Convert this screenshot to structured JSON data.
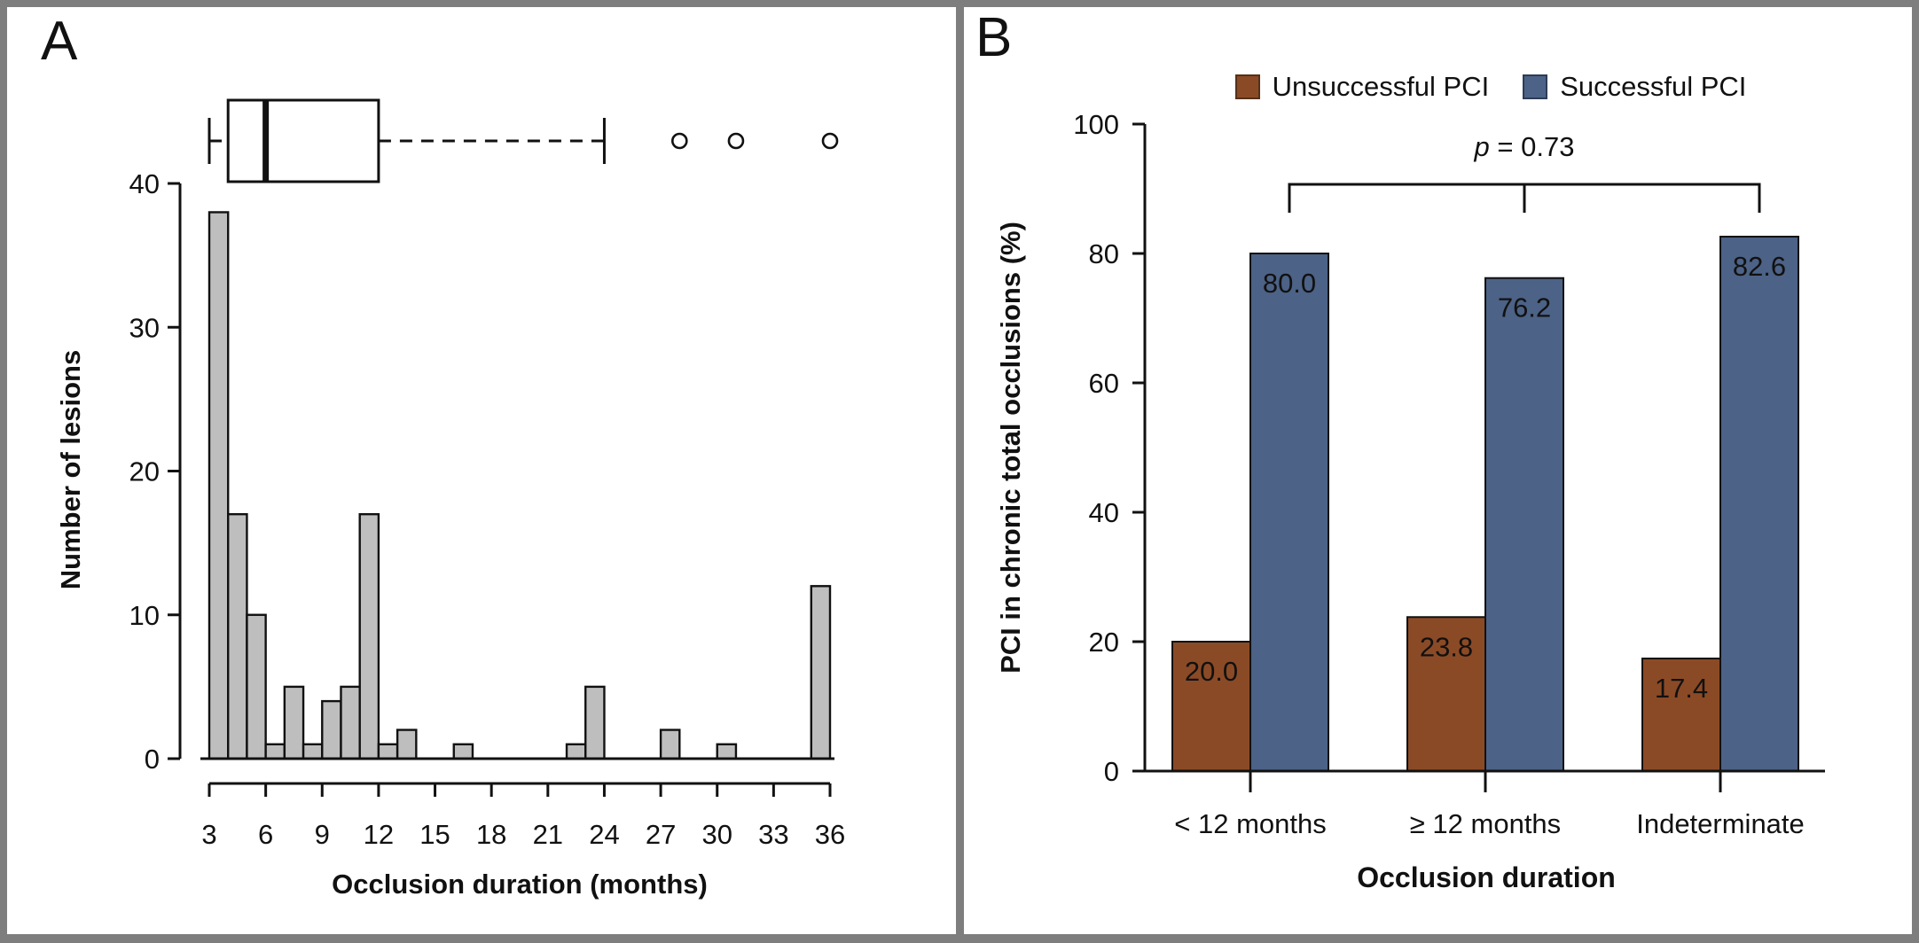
{
  "figure": {
    "panel_a_letter": "A",
    "panel_b_letter": "B"
  },
  "colors": {
    "frame_gray": "#7e7e7e",
    "histogram_fill": "#bebebe",
    "unsuccessful_brown": "#8b4a26",
    "successful_blue": "#4c6286",
    "axis_black": "#111111",
    "value_label_white": "#ffffff"
  },
  "chart_data": [
    {
      "type": "bar",
      "panel": "A",
      "subtype": "histogram-with-boxplot",
      "xlabel": "Occlusion duration (months)",
      "ylabel": "Number of lesions",
      "xlim": [
        3,
        36
      ],
      "ylim": [
        0,
        40
      ],
      "x_ticks": [
        3,
        6,
        9,
        12,
        15,
        18,
        21,
        24,
        27,
        30,
        33,
        36
      ],
      "y_ticks": [
        0,
        10,
        20,
        30,
        40
      ],
      "grid": "off",
      "bin_width_months": 1,
      "bins": [
        {
          "start": 3,
          "count": 38
        },
        {
          "start": 4,
          "count": 17
        },
        {
          "start": 5,
          "count": 10
        },
        {
          "start": 6,
          "count": 1
        },
        {
          "start": 7,
          "count": 5
        },
        {
          "start": 8,
          "count": 1
        },
        {
          "start": 9,
          "count": 4
        },
        {
          "start": 10,
          "count": 5
        },
        {
          "start": 11,
          "count": 17
        },
        {
          "start": 12,
          "count": 1
        },
        {
          "start": 13,
          "count": 2
        },
        {
          "start": 16,
          "count": 1
        },
        {
          "start": 22,
          "count": 1
        },
        {
          "start": 23,
          "count": 5
        },
        {
          "start": 27,
          "count": 2
        },
        {
          "start": 30,
          "count": 1
        },
        {
          "start": 35,
          "count": 12
        }
      ],
      "boxplot": {
        "whisker_low": 3,
        "q1": 4,
        "median": 6,
        "q3": 12,
        "whisker_high": 24,
        "outliers": [
          28,
          31,
          36
        ]
      }
    },
    {
      "type": "bar",
      "panel": "B",
      "subtype": "grouped-vertical",
      "xlabel": "Occlusion duration",
      "ylabel": "PCI in chronic total occlusions (%)",
      "ylim": [
        0,
        100
      ],
      "y_ticks": [
        0,
        20,
        40,
        60,
        80,
        100
      ],
      "grid": "off",
      "legend_position": "top",
      "categories": [
        "< 12 months",
        "≥ 12 months",
        "Indeterminate"
      ],
      "series": [
        {
          "name": "Unsuccessful PCI",
          "color": "#8b4a26",
          "values": [
            20.0,
            23.8,
            17.4
          ],
          "labels": [
            "20.0",
            "23.8",
            "17.4"
          ]
        },
        {
          "name": "Successful PCI",
          "color": "#4c6286",
          "values": [
            80.0,
            76.2,
            82.6
          ],
          "labels": [
            "80.0",
            "76.2",
            "82.6"
          ]
        }
      ],
      "annotation": {
        "p_italic": "p",
        "p_rest": " = 0.73"
      }
    }
  ]
}
